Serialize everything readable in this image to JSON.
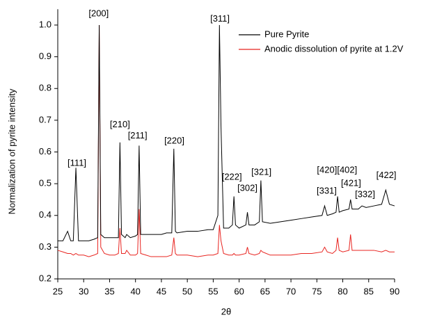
{
  "chart_data": {
    "type": "line",
    "x_label": "2θ",
    "y_label": "Normalization of pyrite intensity",
    "x": [
      25,
      26,
      26.9,
      27.5,
      28,
      28.5,
      29,
      30,
      31,
      32,
      32.7,
      33,
      33.3,
      34,
      35,
      36,
      36.7,
      37,
      37.3,
      38,
      38.3,
      39,
      40,
      40.4,
      40.7,
      41,
      42,
      43,
      44,
      45,
      46,
      47,
      47.4,
      47.7,
      48,
      50,
      52,
      54,
      55,
      55.9,
      56.2,
      56.5,
      57,
      58,
      58.7,
      59,
      59.3,
      60,
      61.3,
      61.6,
      61.9,
      63,
      63.9,
      64.2,
      64.5,
      66,
      68,
      70,
      72,
      74,
      76,
      76.5,
      77,
      78,
      78.7,
      79,
      79.3,
      80,
      81.2,
      81.5,
      81.8,
      83,
      83.7,
      84.5,
      86,
      87.5,
      88.3,
      89,
      90
    ],
    "series": [
      {
        "name": "Pure Pyrite",
        "color": "#000000",
        "values": [
          0.32,
          0.32,
          0.35,
          0.32,
          0.32,
          0.55,
          0.32,
          0.32,
          0.32,
          0.325,
          0.33,
          1.0,
          0.34,
          0.33,
          0.33,
          0.33,
          0.33,
          0.63,
          0.34,
          0.33,
          0.34,
          0.33,
          0.335,
          0.34,
          0.62,
          0.34,
          0.34,
          0.34,
          0.34,
          0.34,
          0.345,
          0.345,
          0.61,
          0.35,
          0.345,
          0.35,
          0.35,
          0.355,
          0.355,
          0.4,
          1.0,
          0.68,
          0.36,
          0.36,
          0.37,
          0.46,
          0.37,
          0.36,
          0.37,
          0.41,
          0.37,
          0.37,
          0.38,
          0.51,
          0.38,
          0.375,
          0.38,
          0.385,
          0.39,
          0.395,
          0.4,
          0.43,
          0.4,
          0.405,
          0.41,
          0.46,
          0.41,
          0.415,
          0.42,
          0.45,
          0.42,
          0.42,
          0.43,
          0.425,
          0.43,
          0.435,
          0.48,
          0.435,
          0.43
        ]
      },
      {
        "name": "Anodic dissolution of pyrite at 1.2V",
        "color": "#e8231f",
        "values": [
          0.29,
          0.285,
          0.28,
          0.28,
          0.275,
          0.28,
          0.275,
          0.275,
          0.27,
          0.275,
          0.28,
          1.0,
          0.3,
          0.28,
          0.275,
          0.275,
          0.28,
          0.36,
          0.28,
          0.28,
          0.29,
          0.275,
          0.275,
          0.28,
          0.42,
          0.28,
          0.275,
          0.27,
          0.27,
          0.27,
          0.27,
          0.275,
          0.33,
          0.28,
          0.275,
          0.275,
          0.27,
          0.275,
          0.275,
          0.28,
          0.37,
          0.32,
          0.28,
          0.275,
          0.275,
          0.28,
          0.275,
          0.275,
          0.28,
          0.3,
          0.28,
          0.275,
          0.28,
          0.29,
          0.285,
          0.275,
          0.275,
          0.275,
          0.28,
          0.28,
          0.285,
          0.3,
          0.285,
          0.28,
          0.29,
          0.33,
          0.29,
          0.285,
          0.29,
          0.34,
          0.29,
          0.29,
          0.29,
          0.29,
          0.29,
          0.285,
          0.29,
          0.285,
          0.285
        ]
      }
    ],
    "xlim": [
      25,
      90
    ],
    "xticks": [
      25,
      30,
      35,
      40,
      45,
      50,
      55,
      60,
      65,
      70,
      75,
      80,
      85,
      90
    ],
    "ylim": [
      0.2,
      1.05
    ],
    "yticks": [
      0.2,
      0.3,
      0.4,
      0.5,
      0.6,
      0.7,
      0.8,
      0.9,
      {
        "value": 1.0,
        "label": "1.0"
      }
    ],
    "legend": "upper right",
    "annotations": [
      {
        "text": "[111]",
        "x": 28.7,
        "y": 0.564
      },
      {
        "text": "[200]",
        "x": 32.9,
        "y": 1.035
      },
      {
        "text": "[210]",
        "x": 37,
        "y": 0.685
      },
      {
        "text": "[211]",
        "x": 40.4,
        "y": 0.65
      },
      {
        "text": "[220]",
        "x": 47.5,
        "y": 0.634
      },
      {
        "text": "[311]",
        "x": 56.3,
        "y": 1.018
      },
      {
        "text": "[222]",
        "x": 58.6,
        "y": 0.52
      },
      {
        "text": "[302]",
        "x": 61.6,
        "y": 0.485
      },
      {
        "text": "[321]",
        "x": 64.3,
        "y": 0.535
      },
      {
        "text": "[331]",
        "x": 76.9,
        "y": 0.476
      },
      {
        "text": "[420][402]",
        "x": 78.9,
        "y": 0.542
      },
      {
        "text": "[421]",
        "x": 81.6,
        "y": 0.5
      },
      {
        "text": "[332]",
        "x": 84.3,
        "y": 0.465
      },
      {
        "text": "[422]",
        "x": 88.4,
        "y": 0.525
      }
    ]
  }
}
